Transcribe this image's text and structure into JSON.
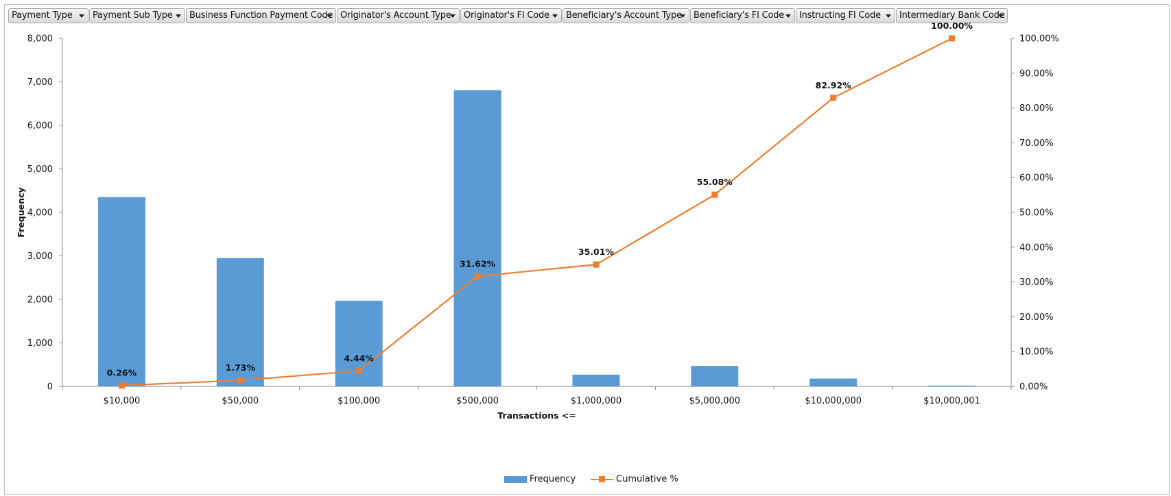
{
  "filters": [
    {
      "label": "Payment Type"
    },
    {
      "label": "Payment Sub Type"
    },
    {
      "label": "Business Function Payment Code"
    },
    {
      "label": "Originator's Account Type"
    },
    {
      "label": "Originator's FI Code"
    },
    {
      "label": "Beneficiary's Account Type"
    },
    {
      "label": "Beneficiary's FI Code"
    },
    {
      "label": "Instructing FI Code"
    },
    {
      "label": "Intermediary Bank Code"
    }
  ],
  "colors": {
    "bars": "#5b9bd5",
    "line": "#ed7d31",
    "axis": "#868686"
  },
  "chart_data": {
    "type": "bar",
    "title": "",
    "xlabel": "Transactions  <=",
    "ylabel": "Frequency",
    "categories": [
      "$10,000",
      "$50,000",
      "$100,000",
      "$500,000",
      "$1,000,000",
      "$5,000,000",
      "$10,000,000",
      "$10,000,001"
    ],
    "series": [
      {
        "name": "Frequency",
        "type": "bar",
        "axis": "left",
        "values": [
          4350,
          2950,
          1970,
          6810,
          270,
          470,
          180,
          20
        ]
      },
      {
        "name": "Cumulative %",
        "type": "line",
        "axis": "right",
        "values": [
          0.26,
          1.73,
          4.44,
          31.62,
          35.01,
          55.08,
          82.92,
          100.0
        ],
        "labels": [
          "0.26%",
          "1.73%",
          "4.44%",
          "31.62%",
          "35.01%",
          "55.08%",
          "82.92%",
          "100.00%"
        ]
      }
    ],
    "ylim": [
      0,
      8000
    ],
    "y_ticks": [
      0,
      1000,
      2000,
      3000,
      4000,
      5000,
      6000,
      7000,
      8000
    ],
    "y_tick_labels": [
      "0",
      "1,000",
      "2,000",
      "3,000",
      "4,000",
      "5,000",
      "6,000",
      "7,000",
      "8,000"
    ],
    "y2lim": [
      0,
      100
    ],
    "y2_ticks": [
      0,
      10,
      20,
      30,
      40,
      50,
      60,
      70,
      80,
      90,
      100
    ],
    "y2_tick_labels": [
      "0.00%",
      "10.00%",
      "20.00%",
      "30.00%",
      "40.00%",
      "50.00%",
      "60.00%",
      "70.00%",
      "80.00%",
      "90.00%",
      "100.00%"
    ],
    "grid": false,
    "legend_position": "bottom"
  }
}
